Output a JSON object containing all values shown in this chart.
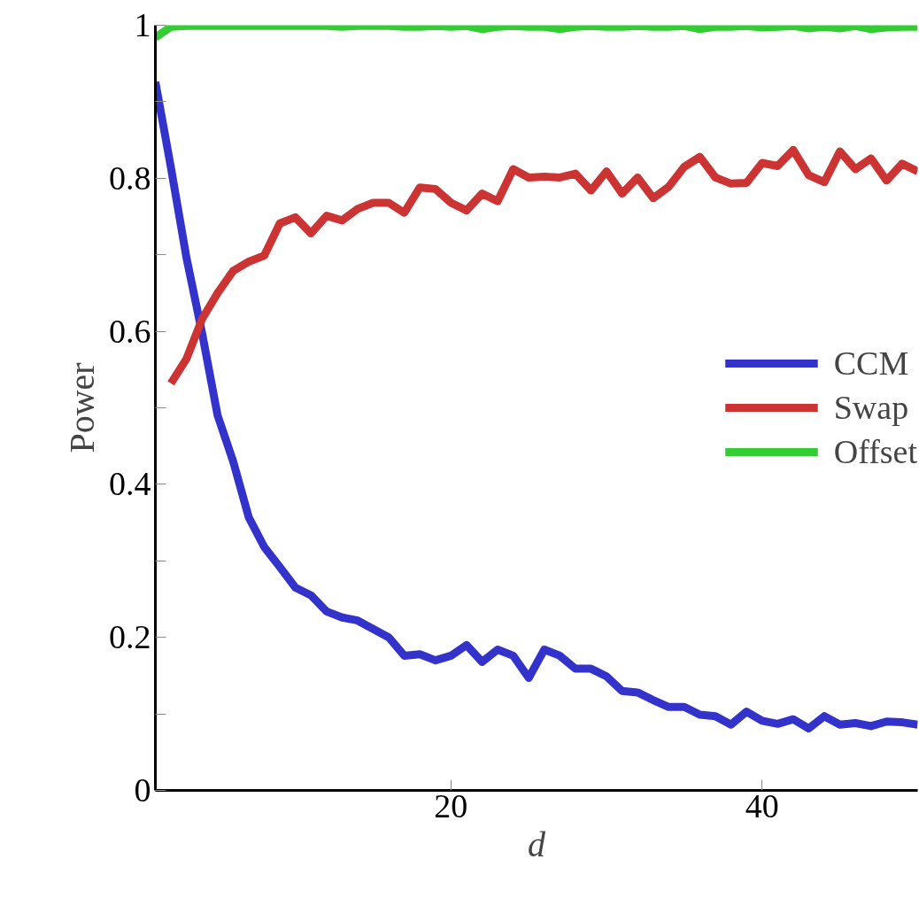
{
  "chart_data": {
    "type": "line",
    "xlabel": "d",
    "ylabel": "Power",
    "x": [
      1,
      2,
      3,
      4,
      5,
      6,
      7,
      8,
      9,
      10,
      11,
      12,
      13,
      14,
      15,
      16,
      17,
      18,
      19,
      20,
      21,
      22,
      23,
      24,
      25,
      26,
      27,
      28,
      29,
      30,
      31,
      32,
      33,
      34,
      35,
      36,
      37,
      38,
      39,
      40,
      41,
      42,
      43,
      44,
      45,
      46,
      47,
      48,
      49,
      50
    ],
    "series": [
      {
        "name": "CCM",
        "color": "#3333cc",
        "values": [
          0.926,
          0.814,
          0.696,
          0.598,
          0.49,
          0.43,
          0.357,
          0.318,
          0.292,
          0.265,
          0.255,
          0.234,
          0.226,
          0.222,
          0.211,
          0.2,
          0.176,
          0.178,
          0.17,
          0.176,
          0.19,
          0.168,
          0.184,
          0.176,
          0.147,
          0.184,
          0.176,
          0.159,
          0.159,
          0.149,
          0.13,
          0.128,
          0.118,
          0.109,
          0.109,
          0.099,
          0.097,
          0.086,
          0.103,
          0.091,
          0.087,
          0.093,
          0.081,
          0.097,
          0.086,
          0.088,
          0.084,
          0.09,
          0.089,
          0.086
        ]
      },
      {
        "name": "Swap",
        "color": "#cc3333",
        "values": [
          null,
          0.532,
          0.564,
          0.616,
          0.65,
          0.679,
          0.691,
          0.699,
          0.741,
          0.749,
          0.728,
          0.751,
          0.745,
          0.76,
          0.768,
          0.768,
          0.755,
          0.788,
          0.786,
          0.768,
          0.758,
          0.78,
          0.77,
          0.812,
          0.801,
          0.802,
          0.801,
          0.806,
          0.784,
          0.809,
          0.78,
          0.801,
          0.774,
          0.789,
          0.815,
          0.828,
          0.801,
          0.793,
          0.794,
          0.82,
          0.816,
          0.837,
          0.804,
          0.795,
          0.835,
          0.812,
          0.826,
          0.797,
          0.819,
          0.809
        ]
      },
      {
        "name": "Offset",
        "color": "#33cc33",
        "values": [
          0.984,
          0.998,
          0.999,
          0.999,
          0.999,
          0.999,
          0.999,
          0.999,
          0.999,
          0.999,
          0.999,
          0.999,
          0.998,
          0.999,
          0.999,
          0.999,
          0.998,
          0.998,
          0.999,
          0.998,
          0.999,
          0.995,
          0.998,
          0.999,
          0.998,
          0.998,
          0.995,
          0.998,
          0.999,
          0.998,
          0.998,
          0.999,
          0.998,
          0.998,
          0.999,
          0.995,
          0.998,
          0.998,
          0.999,
          0.997,
          0.998,
          0.999,
          0.996,
          0.998,
          0.996,
          0.999,
          0.995,
          0.997,
          0.998,
          0.998
        ]
      }
    ],
    "xlim": [
      1,
      50
    ],
    "ylim": [
      0,
      1
    ],
    "xticks": [
      20,
      40
    ],
    "yticks": [
      0,
      {
        "value": 0.1,
        "label": null
      },
      0.2,
      {
        "value": 0.3,
        "label": null
      },
      0.4,
      {
        "value": 0.5,
        "label": null
      },
      0.6,
      {
        "value": 0.7,
        "label": null
      },
      0.8,
      {
        "value": 0.9,
        "label": null
      },
      1
    ],
    "legend": "right",
    "grid": false
  }
}
